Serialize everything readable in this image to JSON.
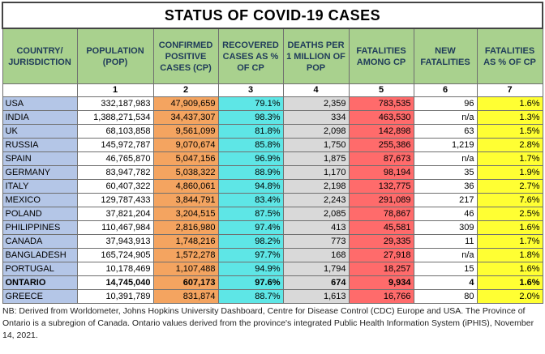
{
  "title": "STATUS OF COVID-19 CASES",
  "headers": [
    "COUNTRY/ JURISDICTION",
    "POPULATION (POP)",
    "CONFIRMED POSITIVE CASES (CP)",
    "RECOVERED CASES AS % OF CP",
    "DEATHS PER 1 MILLION OF POP",
    "FATALITIES AMONG CP",
    "NEW FATALITIES",
    "FATALITIES AS % OF CP"
  ],
  "column_numbers": [
    "",
    "1",
    "2",
    "3",
    "4",
    "5",
    "6",
    "7"
  ],
  "rows": [
    {
      "country": "USA",
      "pop": "332,187,983",
      "cp": "47,909,659",
      "rec": "79.1%",
      "dpm": "2,359",
      "fat": "783,535",
      "newf": "96",
      "pct": "1.6%"
    },
    {
      "country": "INDIA",
      "pop": "1,388,271,534",
      "cp": "34,437,307",
      "rec": "98.3%",
      "dpm": "334",
      "fat": "463,530",
      "newf": "n/a",
      "pct": "1.3%"
    },
    {
      "country": "UK",
      "pop": "68,103,858",
      "cp": "9,561,099",
      "rec": "81.8%",
      "dpm": "2,098",
      "fat": "142,898",
      "newf": "63",
      "pct": "1.5%"
    },
    {
      "country": "RUSSIA",
      "pop": "145,972,787",
      "cp": "9,070,674",
      "rec": "85.8%",
      "dpm": "1,750",
      "fat": "255,386",
      "newf": "1,219",
      "pct": "2.8%"
    },
    {
      "country": "SPAIN",
      "pop": "46,765,870",
      "cp": "5,047,156",
      "rec": "96.9%",
      "dpm": "1,875",
      "fat": "87,673",
      "newf": "n/a",
      "pct": "1.7%"
    },
    {
      "country": "GERMANY",
      "pop": "83,947,782",
      "cp": "5,038,322",
      "rec": "88.9%",
      "dpm": "1,170",
      "fat": "98,194",
      "newf": "35",
      "pct": "1.9%"
    },
    {
      "country": "ITALY",
      "pop": "60,407,322",
      "cp": "4,860,061",
      "rec": "94.8%",
      "dpm": "2,198",
      "fat": "132,775",
      "newf": "36",
      "pct": "2.7%"
    },
    {
      "country": "MEXICO",
      "pop": "129,787,433",
      "cp": "3,844,791",
      "rec": "83.4%",
      "dpm": "2,243",
      "fat": "291,089",
      "newf": "217",
      "pct": "7.6%"
    },
    {
      "country": "POLAND",
      "pop": "37,821,204",
      "cp": "3,204,515",
      "rec": "87.5%",
      "dpm": "2,085",
      "fat": "78,867",
      "newf": "46",
      "pct": "2.5%"
    },
    {
      "country": "PHILIPPINES",
      "pop": "110,467,984",
      "cp": "2,816,980",
      "rec": "97.4%",
      "dpm": "413",
      "fat": "45,581",
      "newf": "309",
      "pct": "1.6%"
    },
    {
      "country": "CANADA",
      "pop": "37,943,913",
      "cp": "1,748,216",
      "rec": "98.2%",
      "dpm": "773",
      "fat": "29,335",
      "newf": "11",
      "pct": "1.7%"
    },
    {
      "country": "BANGLADESH",
      "pop": "165,724,905",
      "cp": "1,572,278",
      "rec": "97.7%",
      "dpm": "168",
      "fat": "27,918",
      "newf": "n/a",
      "pct": "1.8%"
    },
    {
      "country": "PORTUGAL",
      "pop": "10,178,469",
      "cp": "1,107,488",
      "rec": "94.9%",
      "dpm": "1,794",
      "fat": "18,257",
      "newf": "15",
      "pct": "1.6%"
    },
    {
      "country": "ONTARIO",
      "pop": "14,745,040",
      "cp": "607,173",
      "rec": "97.6%",
      "dpm": "674",
      "fat": "9,934",
      "newf": "4",
      "pct": "1.6%",
      "bold": true
    },
    {
      "country": "GREECE",
      "pop": "10,391,789",
      "cp": "831,874",
      "rec": "88.7%",
      "dpm": "1,613",
      "fat": "16,766",
      "newf": "80",
      "pct": "2.0%"
    }
  ],
  "note": "NB: Derived from Worldometer, Johns Hopkins University Dashboard, Centre for Disease Control (CDC) Europe and USA. The Province of Ontario is a subregion of Canada. Ontario values derived from the province's integrated Public Health Information System (iPHIS), November 14, 2021.",
  "colors": {
    "header": "#a9d18e",
    "country": "#b4c6e7",
    "confirmed": "#f4a460",
    "recovered": "#5ee6e6",
    "deaths_per_million": "#d9d9d9",
    "fatalities": "#ff6b6b",
    "fatality_pct": "#ffff33"
  }
}
